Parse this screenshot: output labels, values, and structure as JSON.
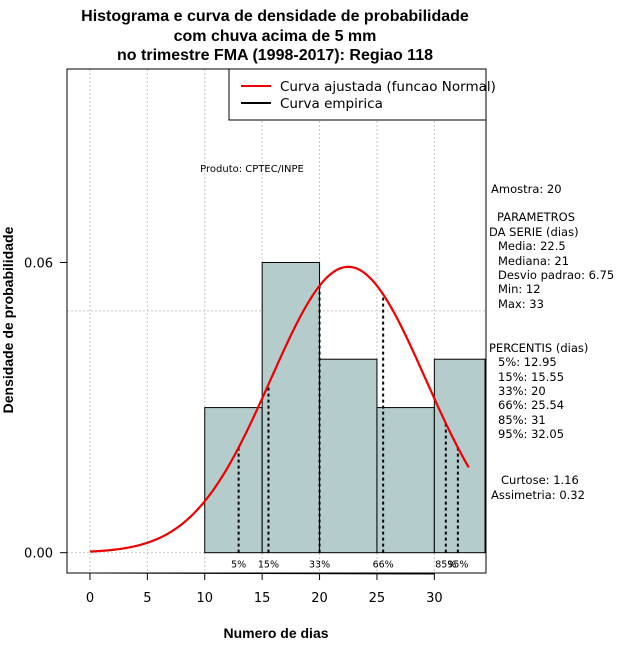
{
  "chart_data": {
    "type": "bar",
    "title_lines": [
      "Histograma e curva de densidade de probabilidade",
      "com chuva acima de 5 mm",
      "no trimestre FMA (1998-2017): Regiao 118"
    ],
    "xlabel": "Numero de dias",
    "ylabel": "Densidade de probabilidade",
    "xlim": [
      -2,
      34.5
    ],
    "ylim": [
      -0.0042,
      0.1
    ],
    "x_ticks": [
      0,
      5,
      10,
      15,
      20,
      25,
      30
    ],
    "y_ticks": [
      0.0,
      0.06
    ],
    "y_tick_labels": [
      "0.00",
      "0.06"
    ],
    "grid_x": [
      0,
      5,
      10,
      15,
      20,
      25,
      30
    ],
    "grid_y": [
      0.0,
      0.05,
      0.1
    ],
    "bins": [
      {
        "x0": 10,
        "x1": 15,
        "density": 0.03
      },
      {
        "x0": 15,
        "x1": 20,
        "density": 0.06
      },
      {
        "x0": 20,
        "x1": 25,
        "density": 0.04
      },
      {
        "x0": 25,
        "x1": 30,
        "density": 0.03
      },
      {
        "x0": 30,
        "x1": 35,
        "density": 0.04
      }
    ],
    "bar_color": "#b4cccc",
    "normal_fit": {
      "mean": 22.5,
      "sd": 6.75,
      "x_from": 0,
      "x_to": 33,
      "color": "#ee0000"
    },
    "percentile_lines": [
      {
        "label": "5%",
        "value": 12.95
      },
      {
        "label": "15%",
        "value": 15.55
      },
      {
        "label": "33%",
        "value": 20
      },
      {
        "label": "66%",
        "value": 25.54
      },
      {
        "label": "85%",
        "value": 31
      },
      {
        "label": "95%",
        "value": 32.05
      }
    ],
    "legend": [
      {
        "label": "Curva ajustada (funcao Normal)",
        "color": "#ee0000"
      },
      {
        "label": "Curva empirica",
        "color": "#000000"
      }
    ],
    "annotation": "Produto: CPTEC/INPE"
  },
  "stats_panel": {
    "amostra": "Amostra: 20",
    "params_title": "PARAMETROS",
    "params_subtitle": "DA SERIE (dias)",
    "params": [
      "Media: 22.5",
      "Mediana: 21",
      "Desvio padrao: 6.75",
      "Min: 12",
      "Max: 33"
    ],
    "percentis_title": "PERCENTIS (dias)",
    "percentis": [
      "5%: 12.95",
      "15%: 15.55",
      "33%: 20",
      "66%: 25.54",
      "85%: 31",
      "95%: 32.05"
    ],
    "curtose": "Curtose: 1.16",
    "assimetria": "Assimetria: 0.32"
  }
}
